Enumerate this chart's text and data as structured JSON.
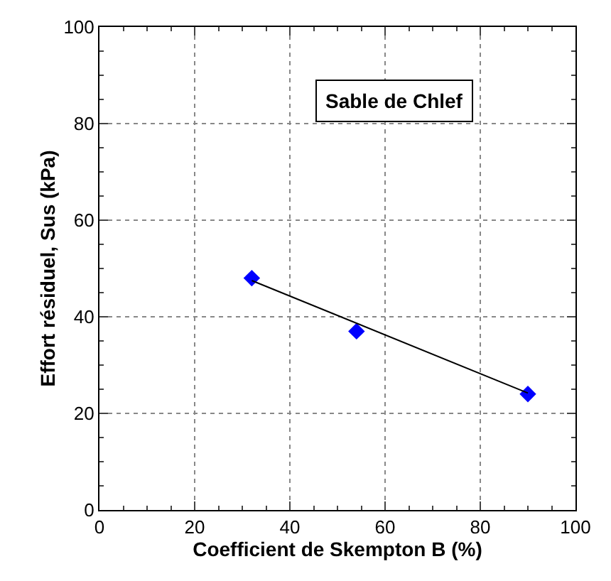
{
  "chart_data": {
    "type": "scatter",
    "xlabel": "Coefficient de Skempton B (%)",
    "ylabel": "Effort résiduel, Sus (kPa)",
    "annotations": [
      "Sable de Chlef"
    ],
    "series": [
      {
        "color": "#0000ff",
        "marker": "diamond",
        "x": [
          32,
          54,
          90
        ],
        "values": [
          48,
          37,
          24
        ]
      },
      {
        "type": "line",
        "color": "#000000",
        "marker": "none",
        "x": [
          32,
          90
        ],
        "values": [
          47.5,
          24.2
        ]
      }
    ],
    "xlim": [
      0,
      100
    ],
    "xticks": [
      0,
      20,
      40,
      60,
      80,
      100
    ],
    "ylim": [
      0,
      100
    ],
    "yticks": [
      0,
      20,
      40,
      60,
      80,
      100
    ],
    "grid": true
  }
}
